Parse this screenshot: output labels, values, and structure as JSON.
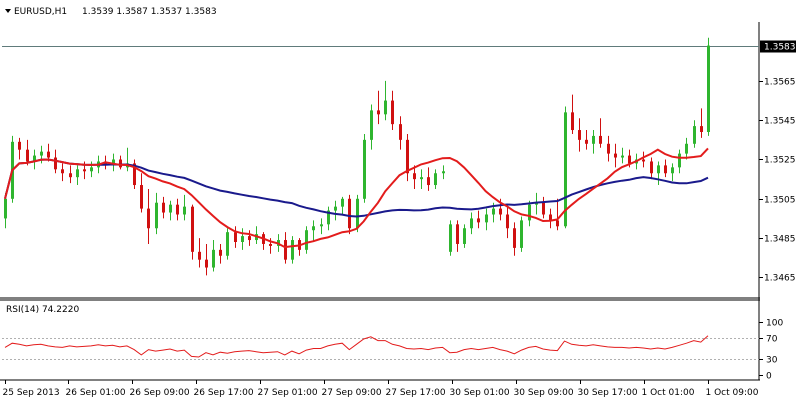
{
  "header": {
    "symbol_label": "EURUSD,H1",
    "ohlc_label": "1.3539 1.3587 1.3537 1.3583"
  },
  "rsi_panel": {
    "label": "RSI(14) 74.2220"
  },
  "colors": {
    "bull": "#2fb52f",
    "bear": "#d01010",
    "ma_fast": "#e31c1c",
    "ma_slow": "#1a1a8c",
    "rsi_line": "#e31c1c",
    "price_marker_bg": "#000000"
  },
  "chart_data": [
    {
      "type": "candlestick",
      "ylim": [
        1.3455,
        1.3595
      ],
      "y_ticks": [
        1.3465,
        1.3485,
        1.3505,
        1.3525,
        1.3545,
        1.3565
      ],
      "y_tick_labels": [
        "1.3465",
        "1.3485",
        "1.3505",
        "1.3525",
        "1.3545",
        "1.3565"
      ],
      "current_price": 1.3583,
      "current_price_label": "1.3583",
      "x_tick_labels": [
        "25 Sep 2013",
        "26 Sep 01:00",
        "26 Sep 09:00",
        "26 Sep 17:00",
        "27 Sep 01:00",
        "27 Sep 09:00",
        "27 Sep 17:00",
        "30 Sep 01:00",
        "30 Sep 09:00",
        "30 Sep 17:00",
        "1 Oct 01:00",
        "1 Oct 09:00"
      ],
      "candles": [
        [
          1.3495,
          1.3508,
          1.349,
          1.3505
        ],
        [
          1.3505,
          1.3537,
          1.3503,
          1.3534
        ],
        [
          1.3534,
          1.3536,
          1.3525,
          1.353
        ],
        [
          1.353,
          1.3535,
          1.3522,
          1.3524
        ],
        [
          1.3524,
          1.353,
          1.352,
          1.3527
        ],
        [
          1.3527,
          1.3532,
          1.3523,
          1.3529
        ],
        [
          1.3529,
          1.3533,
          1.3524,
          1.3526
        ],
        [
          1.3526,
          1.353,
          1.3518,
          1.352
        ],
        [
          1.352,
          1.3523,
          1.3514,
          1.3518
        ],
        [
          1.3518,
          1.3522,
          1.3513,
          1.3516
        ],
        [
          1.3516,
          1.3522,
          1.3512,
          1.352
        ],
        [
          1.352,
          1.3524,
          1.3515,
          1.3519
        ],
        [
          1.3519,
          1.3524,
          1.3516,
          1.3521
        ],
        [
          1.3521,
          1.3527,
          1.3518,
          1.3524
        ],
        [
          1.3524,
          1.3527,
          1.352,
          1.3522
        ],
        [
          1.3522,
          1.3528,
          1.3519,
          1.3525
        ],
        [
          1.3525,
          1.3527,
          1.352,
          1.3521
        ],
        [
          1.3521,
          1.3531,
          1.3519,
          1.3523
        ],
        [
          1.3523,
          1.3525,
          1.351,
          1.3512
        ],
        [
          1.3512,
          1.3518,
          1.3498,
          1.35
        ],
        [
          1.35,
          1.351,
          1.3482,
          1.349
        ],
        [
          1.349,
          1.3508,
          1.3487,
          1.3503
        ],
        [
          1.3503,
          1.3506,
          1.3495,
          1.3498
        ],
        [
          1.3498,
          1.3504,
          1.3494,
          1.3502
        ],
        [
          1.3502,
          1.3505,
          1.3494,
          1.3497
        ],
        [
          1.3497,
          1.3507,
          1.3494,
          1.3501
        ],
        [
          1.3501,
          1.3502,
          1.3474,
          1.3478
        ],
        [
          1.3478,
          1.3485,
          1.347,
          1.3474
        ],
        [
          1.3474,
          1.3482,
          1.3466,
          1.347
        ],
        [
          1.347,
          1.3484,
          1.3468,
          1.3479
        ],
        [
          1.3479,
          1.3482,
          1.3472,
          1.3476
        ],
        [
          1.3476,
          1.349,
          1.3474,
          1.3488
        ],
        [
          1.3488,
          1.3491,
          1.348,
          1.3483
        ],
        [
          1.3483,
          1.349,
          1.3479,
          1.3486
        ],
        [
          1.3486,
          1.3489,
          1.3481,
          1.3484
        ],
        [
          1.3484,
          1.3491,
          1.3482,
          1.3487
        ],
        [
          1.3487,
          1.3488,
          1.3479,
          1.3482
        ],
        [
          1.3482,
          1.3485,
          1.3477,
          1.3481
        ],
        [
          1.3481,
          1.3487,
          1.3478,
          1.3484
        ],
        [
          1.3484,
          1.3488,
          1.3472,
          1.3474
        ],
        [
          1.3474,
          1.3486,
          1.3472,
          1.3484
        ],
        [
          1.3484,
          1.3485,
          1.3476,
          1.3479
        ],
        [
          1.3479,
          1.3491,
          1.3477,
          1.3489
        ],
        [
          1.3489,
          1.3494,
          1.3483,
          1.3491
        ],
        [
          1.3491,
          1.3495,
          1.3487,
          1.3492
        ],
        [
          1.3492,
          1.3501,
          1.3489,
          1.3499
        ],
        [
          1.3499,
          1.3504,
          1.3494,
          1.3501
        ],
        [
          1.3501,
          1.3506,
          1.3497,
          1.3505
        ],
        [
          1.3505,
          1.3507,
          1.3487,
          1.349
        ],
        [
          1.349,
          1.3507,
          1.3488,
          1.3505
        ],
        [
          1.3505,
          1.3538,
          1.3503,
          1.3535
        ],
        [
          1.3535,
          1.3553,
          1.353,
          1.355
        ],
        [
          1.355,
          1.356,
          1.3543,
          1.3548
        ],
        [
          1.3548,
          1.3565,
          1.3545,
          1.3555
        ],
        [
          1.3555,
          1.356,
          1.354,
          1.3543
        ],
        [
          1.3543,
          1.3547,
          1.353,
          1.3535
        ],
        [
          1.3535,
          1.3538,
          1.3514,
          1.3518
        ],
        [
          1.3518,
          1.3522,
          1.351,
          1.3515
        ],
        [
          1.3515,
          1.352,
          1.351,
          1.3516
        ],
        [
          1.3516,
          1.3521,
          1.3509,
          1.3512
        ],
        [
          1.3512,
          1.352,
          1.351,
          1.3518
        ],
        [
          1.3518,
          1.3522,
          1.3515,
          1.3519
        ],
        [
          1.3478,
          1.3494,
          1.3476,
          1.3492
        ],
        [
          1.3492,
          1.3494,
          1.3478,
          1.3482
        ],
        [
          1.3482,
          1.3492,
          1.348,
          1.349
        ],
        [
          1.349,
          1.3498,
          1.3487,
          1.3495
        ],
        [
          1.3495,
          1.3499,
          1.349,
          1.3493
        ],
        [
          1.3493,
          1.35,
          1.3489,
          1.3497
        ],
        [
          1.3497,
          1.3503,
          1.3493,
          1.35
        ],
        [
          1.35,
          1.3505,
          1.3494,
          1.3497
        ],
        [
          1.3497,
          1.3501,
          1.3485,
          1.349
        ],
        [
          1.349,
          1.3493,
          1.3476,
          1.348
        ],
        [
          1.348,
          1.3496,
          1.3478,
          1.3494
        ],
        [
          1.3494,
          1.3504,
          1.3491,
          1.3502
        ],
        [
          1.3502,
          1.3508,
          1.3497,
          1.3503
        ],
        [
          1.3503,
          1.3506,
          1.3495,
          1.3497
        ],
        [
          1.3497,
          1.35,
          1.349,
          1.3494
        ],
        [
          1.3494,
          1.3505,
          1.3489,
          1.3491
        ],
        [
          1.3491,
          1.3552,
          1.349,
          1.3549
        ],
        [
          1.3549,
          1.3558,
          1.3538,
          1.354
        ],
        [
          1.354,
          1.3546,
          1.3529,
          1.3535
        ],
        [
          1.3535,
          1.354,
          1.353,
          1.3533
        ],
        [
          1.3533,
          1.354,
          1.3528,
          1.3537
        ],
        [
          1.3537,
          1.3546,
          1.3531,
          1.3533
        ],
        [
          1.3533,
          1.3537,
          1.3524,
          1.3528
        ],
        [
          1.3528,
          1.3533,
          1.3521,
          1.3526
        ],
        [
          1.3526,
          1.3531,
          1.3523,
          1.3527
        ],
        [
          1.3527,
          1.353,
          1.3521,
          1.3523
        ],
        [
          1.3523,
          1.3528,
          1.352,
          1.3525
        ],
        [
          1.3525,
          1.3529,
          1.3521,
          1.3524
        ],
        [
          1.3524,
          1.3526,
          1.3515,
          1.3518
        ],
        [
          1.3518,
          1.3524,
          1.3512,
          1.3522
        ],
        [
          1.3522,
          1.3525,
          1.3516,
          1.3518
        ],
        [
          1.3518,
          1.3523,
          1.3514,
          1.3521
        ],
        [
          1.3521,
          1.353,
          1.3518,
          1.3528
        ],
        [
          1.3528,
          1.3536,
          1.3525,
          1.3533
        ],
        [
          1.3533,
          1.3545,
          1.3531,
          1.3542
        ],
        [
          1.3542,
          1.3551,
          1.3536,
          1.3539
        ],
        [
          1.3539,
          1.3587,
          1.3537,
          1.3583
        ]
      ]
    },
    {
      "type": "line",
      "ylim": [
        0,
        100
      ],
      "y_ticks": [
        100,
        70,
        30,
        0
      ],
      "y_tick_labels": [
        "100",
        "70",
        "30",
        "0"
      ],
      "levels": [
        70,
        30
      ],
      "series": [
        {
          "name": "RSI(14)",
          "values": [
            52,
            60,
            58,
            55,
            57,
            58,
            55,
            53,
            52,
            55,
            53,
            54,
            55,
            57,
            55,
            56,
            53,
            55,
            48,
            38,
            48,
            45,
            47,
            49,
            45,
            47,
            35,
            34,
            42,
            38,
            43,
            41,
            44,
            45,
            46,
            44,
            42,
            43,
            44,
            38,
            45,
            40,
            47,
            50,
            50,
            55,
            58,
            60,
            48,
            58,
            68,
            72,
            65,
            65,
            58,
            55,
            50,
            49,
            50,
            48,
            51,
            52,
            42,
            43,
            48,
            50,
            48,
            50,
            52,
            48,
            45,
            40,
            47,
            52,
            54,
            49,
            47,
            46,
            64,
            58,
            56,
            55,
            57,
            55,
            53,
            52,
            52,
            51,
            52,
            51,
            49,
            51,
            49,
            52,
            56,
            60,
            65,
            62,
            74
          ]
        }
      ]
    }
  ]
}
